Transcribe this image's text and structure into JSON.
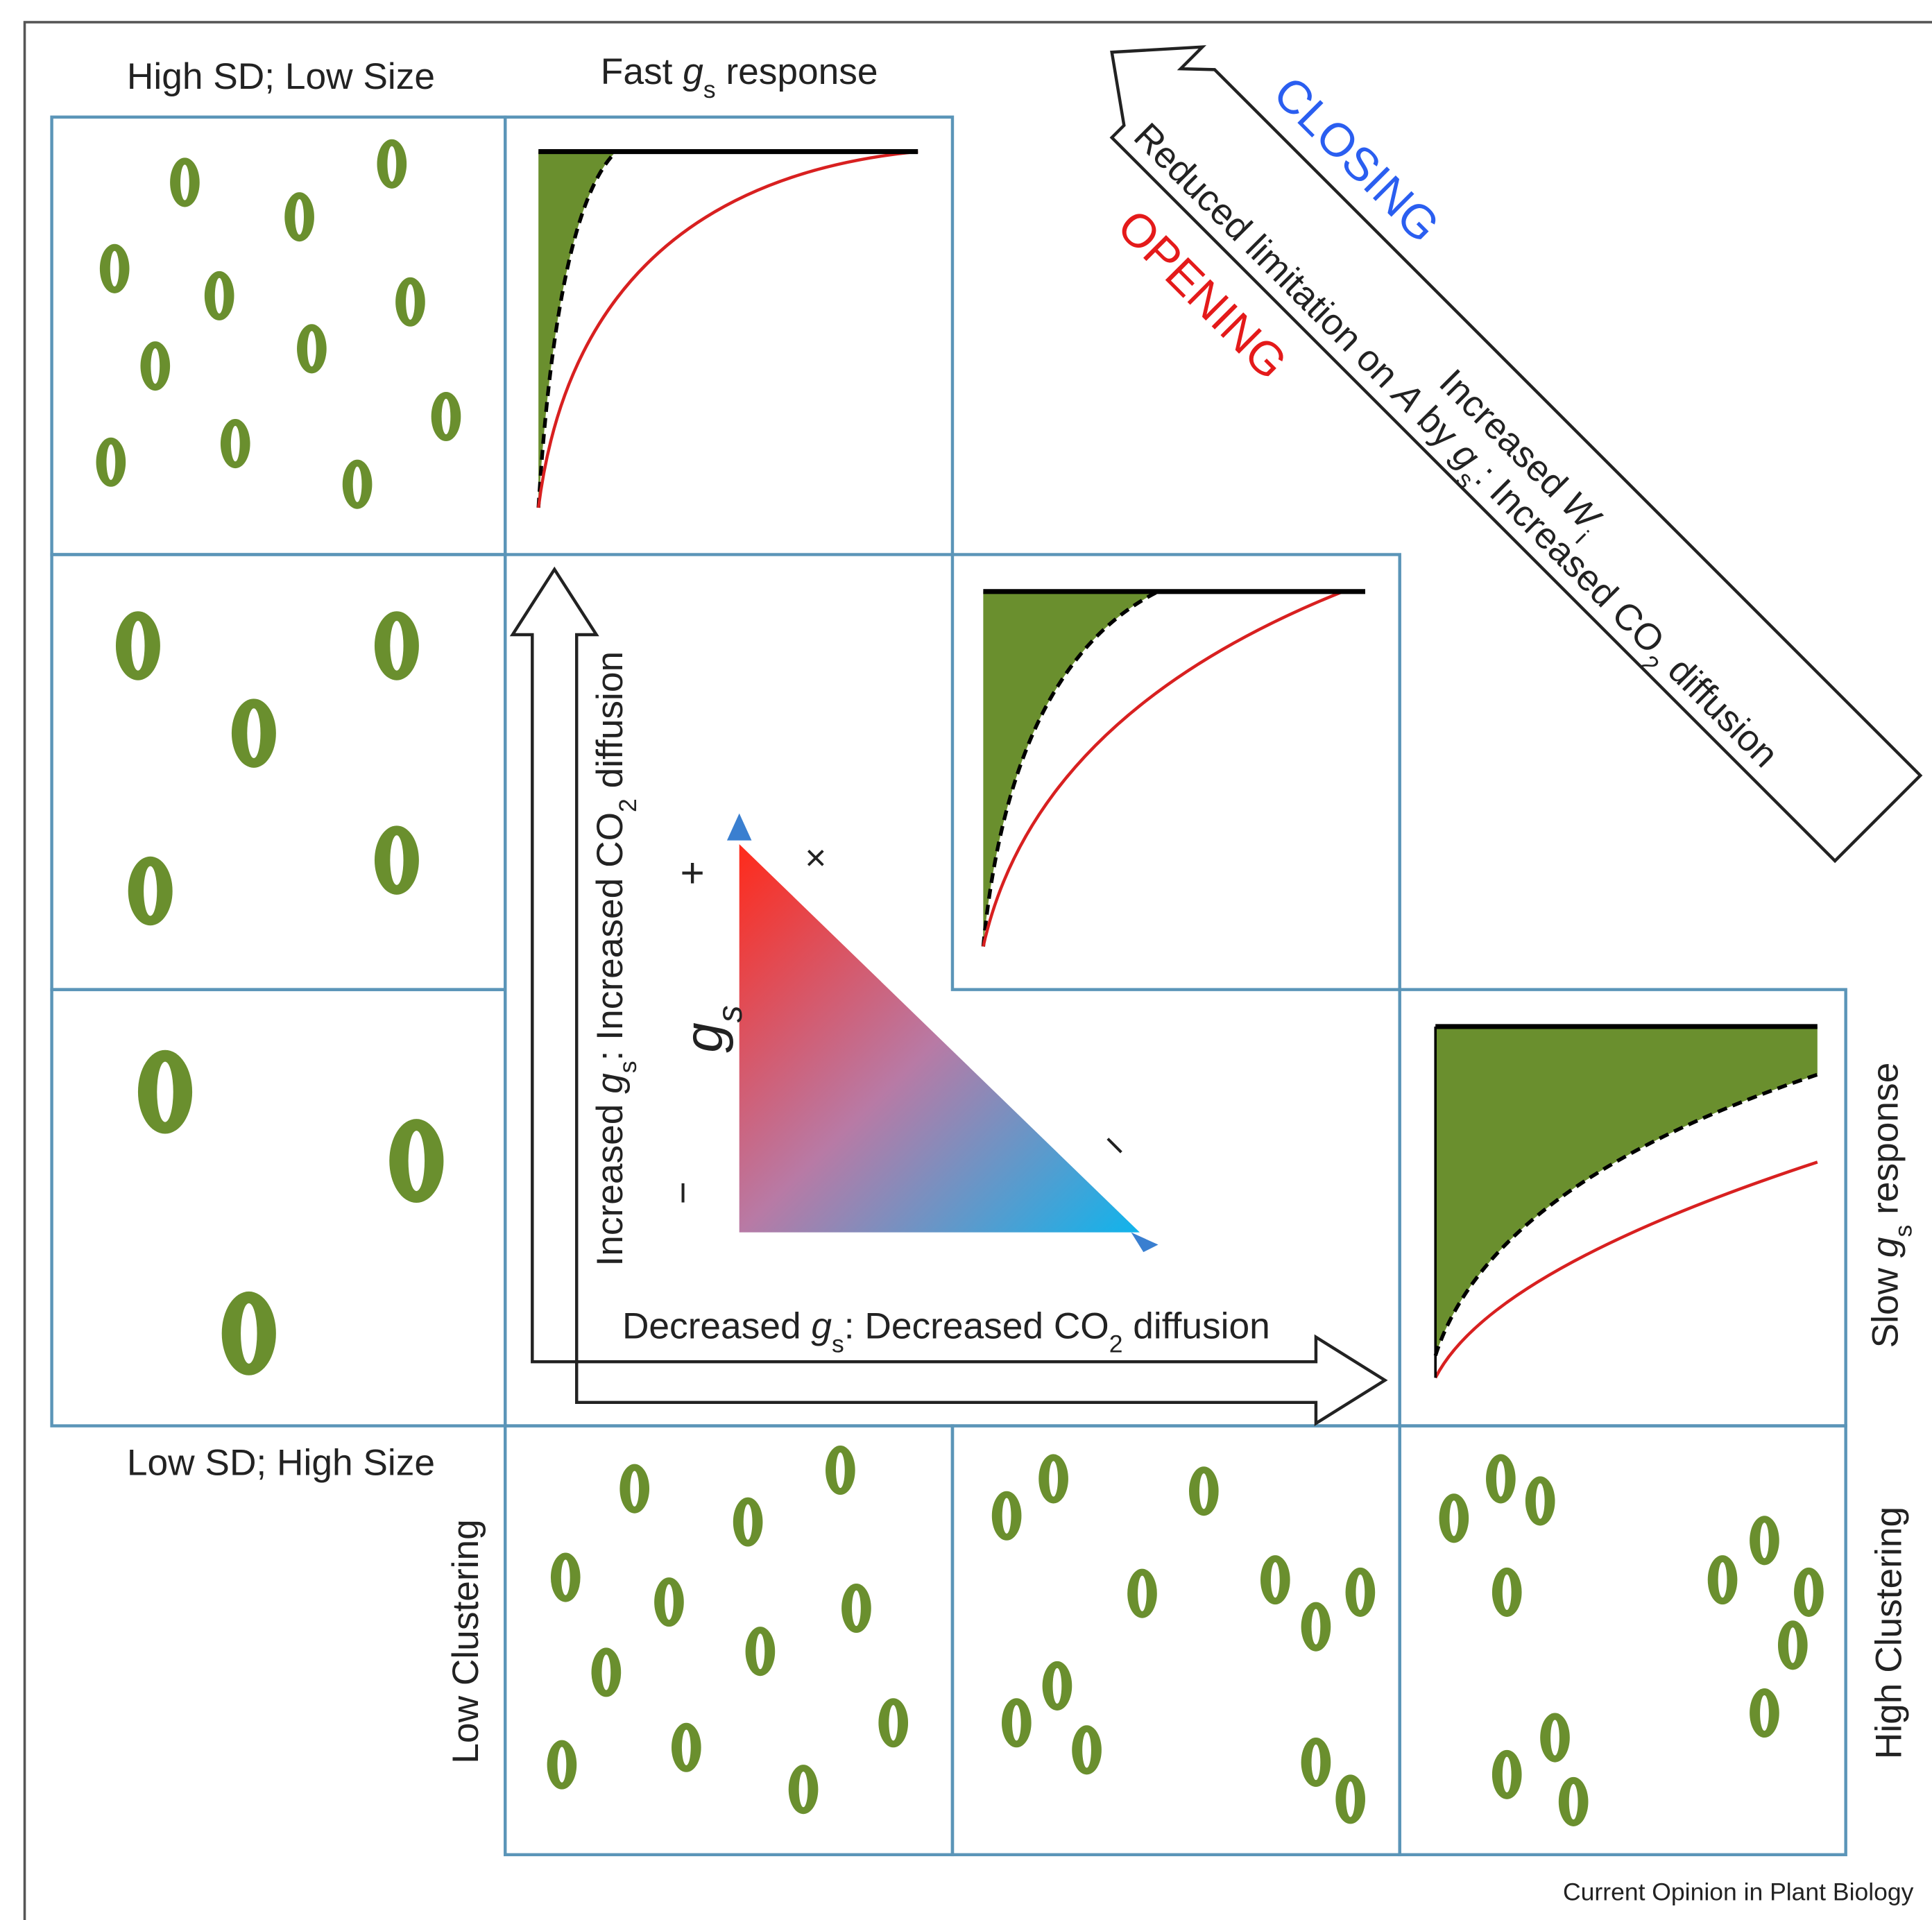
{
  "labels": {
    "high_sd_low_size": "High SD; Low Size",
    "fast_response": [
      "Fast ",
      "g",
      "s",
      " response"
    ],
    "low_sd_high_size": "Low SD; High Size",
    "slow_response": [
      "Slow ",
      "g",
      "s",
      " response"
    ],
    "low_clustering": "Low Clustering",
    "high_clustering": "High Clustering"
  },
  "diagonal_arrow": {
    "closing": "CLOSING",
    "opening": "OPENING",
    "increased_wi": [
      "Increased ",
      "W",
      "i"
    ],
    "reduced_limitation": [
      "Reduced limitation on ",
      "A",
      " by ",
      "g",
      "s",
      ": Increased CO",
      "2",
      " diffusion"
    ]
  },
  "vertical_arrow": {
    "label": [
      "Increased ",
      "g",
      "s",
      ": Increased CO",
      "2",
      " diffusion"
    ]
  },
  "horizontal_arrow": {
    "label": [
      "Decreased ",
      "g",
      "s",
      ": Decreased CO",
      "2",
      " diffusion"
    ]
  },
  "triangle": {
    "plus": "+",
    "times": "×",
    "axis": [
      "g",
      "s"
    ],
    "minus_left": "−",
    "minus_right": "−"
  },
  "footer": "Current Opinion in Plant Biology"
}
